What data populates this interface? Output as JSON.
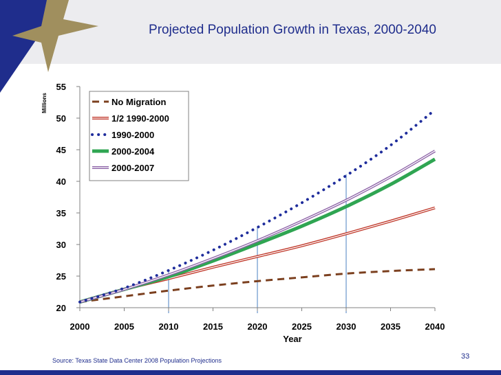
{
  "slide": {
    "title": "Projected Population Growth in Texas, 2000-2040",
    "source": "Source: Texas State Data Center 2008 Population Projections",
    "page_number": "33"
  },
  "colors": {
    "header_band": "#ececef",
    "title_text": "#1f2d8c",
    "corner_blue": "#1f2d8c",
    "corner_star": "#a08f5e"
  },
  "chart_data": {
    "type": "line",
    "xlabel": "Year",
    "ylabel": "Millions",
    "xlim": [
      2000,
      2040
    ],
    "ylim": [
      20,
      55
    ],
    "x_ticks": [
      "2000",
      "2005",
      "2010",
      "2015",
      "2020",
      "2025",
      "2030",
      "2035",
      "2040"
    ],
    "y_ticks": [
      "20",
      "25",
      "30",
      "35",
      "40",
      "45",
      "50",
      "55"
    ],
    "reference_years": [
      2010,
      2020,
      2030
    ],
    "grid": false,
    "legend_position": "top-left",
    "x": [
      2000,
      2005,
      2010,
      2015,
      2020,
      2025,
      2030,
      2035,
      2040
    ],
    "series": [
      {
        "name": "No Migration",
        "color": "#7b3f1e",
        "style": "dashed",
        "values": [
          20.9,
          21.8,
          22.7,
          23.5,
          24.2,
          24.8,
          25.4,
          25.8,
          26.1
        ]
      },
      {
        "name": "1/2 1990-2000",
        "color": "#c0392b",
        "style": "double",
        "values": [
          20.9,
          22.9,
          24.6,
          26.4,
          28.1,
          29.8,
          31.7,
          33.7,
          35.8
        ]
      },
      {
        "name": "1990-2000",
        "color": "#1f2d9c",
        "style": "dotted",
        "values": [
          20.9,
          23.1,
          25.9,
          29.1,
          32.7,
          36.6,
          40.9,
          45.7,
          51.3
        ]
      },
      {
        "name": "2000-2004",
        "color": "#2fa552",
        "style": "thick",
        "values": [
          20.9,
          22.9,
          24.9,
          27.4,
          30.1,
          32.9,
          36.0,
          39.5,
          43.5
        ]
      },
      {
        "name": "2000-2007",
        "color": "#8e64a8",
        "style": "double",
        "values": [
          20.9,
          22.9,
          25.2,
          27.8,
          30.6,
          33.7,
          37.0,
          40.7,
          44.8
        ]
      }
    ]
  }
}
